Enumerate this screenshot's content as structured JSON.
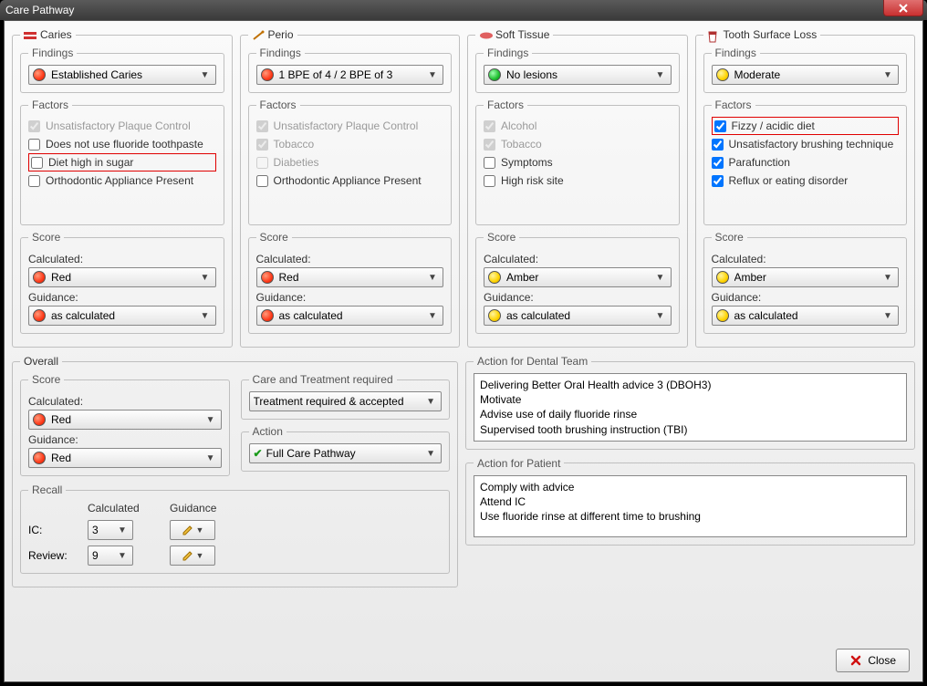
{
  "window": {
    "title": "Care Pathway",
    "close_label": "Close"
  },
  "colors": {
    "red": "#ff3a1a",
    "amber": "#ffd400",
    "green": "#1fc030"
  },
  "columns": [
    {
      "key": "caries",
      "title": "Caries",
      "findings_label": "Findings",
      "findings": {
        "text": "Established Caries",
        "color": "red"
      },
      "factors_label": "Factors",
      "factors": [
        {
          "label": "Unsatisfactory Plaque Control",
          "checked": true,
          "disabled": true
        },
        {
          "label": "Does not use fluoride toothpaste",
          "checked": false,
          "disabled": false
        },
        {
          "label": "Diet high in sugar",
          "checked": false,
          "disabled": false,
          "highlight": true
        },
        {
          "label": "Orthodontic Appliance Present",
          "checked": false,
          "disabled": false
        }
      ],
      "score_label": "Score",
      "calculated_label": "Calculated:",
      "calculated": {
        "text": "Red",
        "color": "red"
      },
      "guidance_label": "Guidance:",
      "guidance": {
        "text": "as calculated",
        "color": "red"
      }
    },
    {
      "key": "perio",
      "title": "Perio",
      "findings_label": "Findings",
      "findings": {
        "text": "1 BPE of 4 / 2 BPE of 3",
        "color": "red"
      },
      "factors_label": "Factors",
      "factors": [
        {
          "label": "Unsatisfactory Plaque Control",
          "checked": true,
          "disabled": true
        },
        {
          "label": "Tobacco",
          "checked": true,
          "disabled": true
        },
        {
          "label": "Diabeties",
          "checked": false,
          "disabled": true
        },
        {
          "label": "Orthodontic Appliance Present",
          "checked": false,
          "disabled": false
        }
      ],
      "score_label": "Score",
      "calculated_label": "Calculated:",
      "calculated": {
        "text": "Red",
        "color": "red"
      },
      "guidance_label": "Guidance:",
      "guidance": {
        "text": "as calculated",
        "color": "red"
      }
    },
    {
      "key": "softtissue",
      "title": "Soft Tissue",
      "findings_label": "Findings",
      "findings": {
        "text": "No lesions",
        "color": "green"
      },
      "factors_label": "Factors",
      "factors": [
        {
          "label": "Alcohol",
          "checked": true,
          "disabled": true
        },
        {
          "label": "Tobacco",
          "checked": true,
          "disabled": true
        },
        {
          "label": "Symptoms",
          "checked": false,
          "disabled": false
        },
        {
          "label": "High risk site",
          "checked": false,
          "disabled": false
        }
      ],
      "score_label": "Score",
      "calculated_label": "Calculated:",
      "calculated": {
        "text": "Amber",
        "color": "amber"
      },
      "guidance_label": "Guidance:",
      "guidance": {
        "text": "as calculated",
        "color": "amber"
      }
    },
    {
      "key": "tsl",
      "title": "Tooth Surface Loss",
      "findings_label": "Findings",
      "findings": {
        "text": "Moderate",
        "color": "amber"
      },
      "factors_label": "Factors",
      "factors": [
        {
          "label": "Fizzy / acidic diet",
          "checked": true,
          "disabled": false,
          "highlight": true
        },
        {
          "label": "Unsatisfactory brushing technique",
          "checked": true,
          "disabled": false
        },
        {
          "label": "Parafunction",
          "checked": true,
          "disabled": false
        },
        {
          "label": "Reflux or eating disorder",
          "checked": true,
          "disabled": false
        }
      ],
      "score_label": "Score",
      "calculated_label": "Calculated:",
      "calculated": {
        "text": "Amber",
        "color": "amber"
      },
      "guidance_label": "Guidance:",
      "guidance": {
        "text": "as calculated",
        "color": "amber"
      }
    }
  ],
  "overall": {
    "title": "Overall",
    "score_label": "Score",
    "calculated_label": "Calculated:",
    "calculated": {
      "text": "Red",
      "color": "red"
    },
    "guidance_label": "Guidance:",
    "guidance": {
      "text": "Red",
      "color": "red"
    },
    "care_label": "Care and Treatment required",
    "care_value": "Treatment required & accepted",
    "action_label": "Action",
    "action_value": "Full Care Pathway"
  },
  "recall": {
    "title": "Recall",
    "calc_hdr": "Calculated",
    "guide_hdr": "Guidance",
    "ic_label": "IC:",
    "ic_value": "3",
    "review_label": "Review:",
    "review_value": "9"
  },
  "action_team": {
    "title": "Action for Dental Team",
    "text": "Delivering Better Oral Health advice 3 (DBOH3)\nMotivate\nAdvise use of daily fluoride rinse\nSupervised tooth brushing instruction (TBI)"
  },
  "action_patient": {
    "title": "Action for Patient",
    "text": "Comply with advice\nAttend IC\nUse fluoride rinse at different time to brushing"
  }
}
